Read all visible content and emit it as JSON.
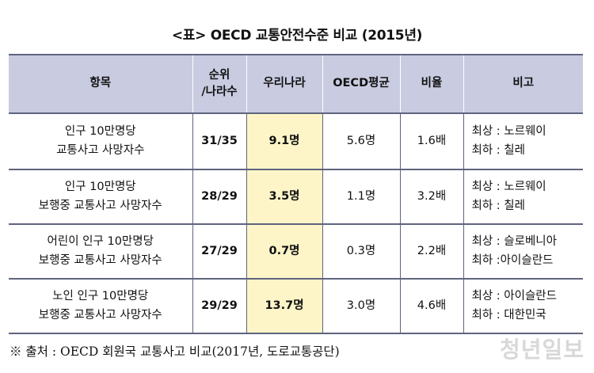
{
  "title": "<표> OECD 교통안전수준 비교 (2015년)",
  "headers": {
    "item": "항목",
    "rank_l1": "순위",
    "rank_l2": "/나라수",
    "korea": "우리나라",
    "oecd_avg": "OECD평균",
    "ratio": "비율",
    "note": "비고"
  },
  "rows": [
    {
      "item_l1": "인구 10만명당",
      "item_l2": "교통사고 사망자수",
      "rank": "31/35",
      "korea": "9.1명",
      "oecd_avg": "5.6명",
      "ratio": "1.6배",
      "note_l1": "최상 : 노르웨이",
      "note_l2": "최하 : 칠레"
    },
    {
      "item_l1": "인구 10만명당",
      "item_l2": "보행중 교통사고 사망자수",
      "rank": "28/29",
      "korea": "3.5명",
      "oecd_avg": "1.1명",
      "ratio": "3.2배",
      "note_l1": "최상 : 노르웨이",
      "note_l2": "최하 : 칠레"
    },
    {
      "item_l1": "어린이 인구 10만명당",
      "item_l2": "보행중 교통사고 사망자수",
      "rank": "27/29",
      "korea": "0.7명",
      "oecd_avg": "0.3명",
      "ratio": "2.2배",
      "note_l1": "최상 : 슬로베니아",
      "note_l2": "최하 :아이슬란드"
    },
    {
      "item_l1": "노인 인구 10만명당",
      "item_l2": "보행중 교통사고 사망자수",
      "rank": "29/29",
      "korea": "13.7명",
      "oecd_avg": "3.0명",
      "ratio": "4.6배",
      "note_l1": "최상 : 아이슬란드",
      "note_l2": "최하 : 대한민국"
    }
  ],
  "source": "※ 출처 : OECD 회원국 교통사고 비교(2017년, 도로교통공단)",
  "watermark": "청년일보"
}
